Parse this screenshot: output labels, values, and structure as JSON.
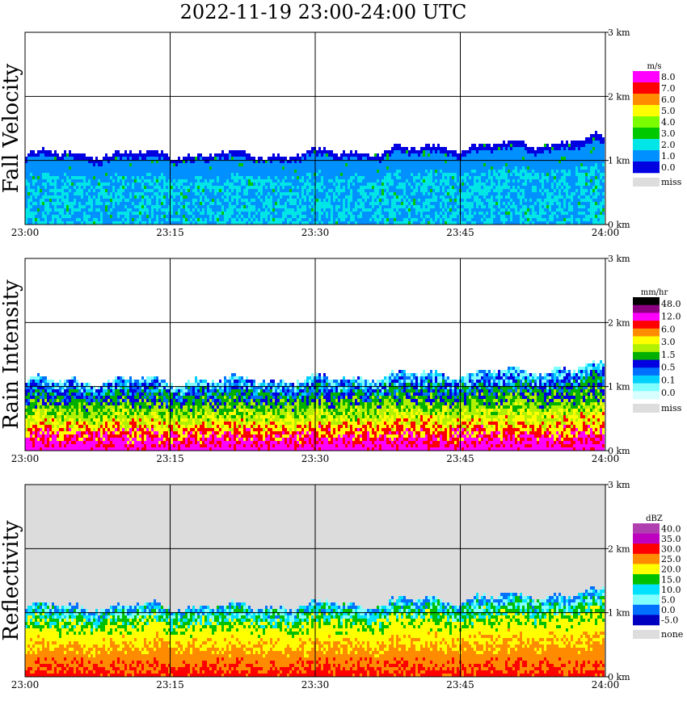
{
  "title": "2022-11-19   23:00-24:00 UTC",
  "chart_data": [
    {
      "type": "heatmap",
      "ylabel": "Fall Velocity",
      "x_ticks": [
        "23:00",
        "23:15",
        "23:30",
        "23:45",
        "24:00"
      ],
      "y_ticks": [
        "0 km",
        "1 km",
        "2 km",
        "3 km"
      ],
      "ylim": [
        0,
        3
      ],
      "legend_unit": "m/s",
      "legend_labels": [
        "8.0",
        "7.0",
        "6.0",
        "5.0",
        "4.0",
        "3.0",
        "2.0",
        "1.0",
        "0.0"
      ],
      "legend_colors": [
        "#ff00ff",
        "#ff0000",
        "#ff8c00",
        "#ffff00",
        "#7cfc00",
        "#00c800",
        "#00e6e6",
        "#0090ff",
        "#0000e0"
      ],
      "miss_label": "miss",
      "miss_color": "#dddddd",
      "background": "#ffffff"
    },
    {
      "type": "heatmap",
      "ylabel": "Rain Intensity",
      "x_ticks": [
        "23:00",
        "23:15",
        "23:30",
        "23:45",
        "24:00"
      ],
      "y_ticks": [
        "0 km",
        "1 km",
        "2 km",
        "3 km"
      ],
      "ylim": [
        0,
        3
      ],
      "legend_unit": "mm/hr",
      "legend_labels": [
        "48.0",
        "12.0",
        "6.0",
        "3.0",
        "1.5",
        "0.5",
        "0.1",
        "0.0"
      ],
      "legend_colors": [
        "#000000",
        "#8b0080",
        "#ff00ff",
        "#ff0000",
        "#ff8c00",
        "#ffff00",
        "#b0f000",
        "#00b000",
        "#0000e0",
        "#0070ff",
        "#00d0ff",
        "#80ffff",
        "#d8ffff"
      ],
      "miss_label": "miss",
      "miss_color": "#dddddd",
      "background": "#ffffff"
    },
    {
      "type": "heatmap",
      "ylabel": "Reflectivity",
      "x_ticks": [
        "23:00",
        "23:15",
        "23:30",
        "23:45",
        "24:00"
      ],
      "y_ticks": [
        "0 km",
        "1 km",
        "2 km",
        "3 km"
      ],
      "ylim": [
        0,
        3
      ],
      "legend_unit": "dBZ",
      "legend_labels": [
        "40.0",
        "35.0",
        "30.0",
        "25.0",
        "20.0",
        "15.0",
        "10.0",
        "5.0",
        "0.0",
        "-5.0"
      ],
      "legend_colors": [
        "#b040b0",
        "#c000c0",
        "#ff0000",
        "#ff8c00",
        "#ffff00",
        "#00c000",
        "#00e0ff",
        "#80ffff",
        "#0070ff",
        "#0000c0"
      ],
      "miss_label": "none",
      "miss_color": "#dddddd",
      "background": "#dcdcdc"
    }
  ]
}
